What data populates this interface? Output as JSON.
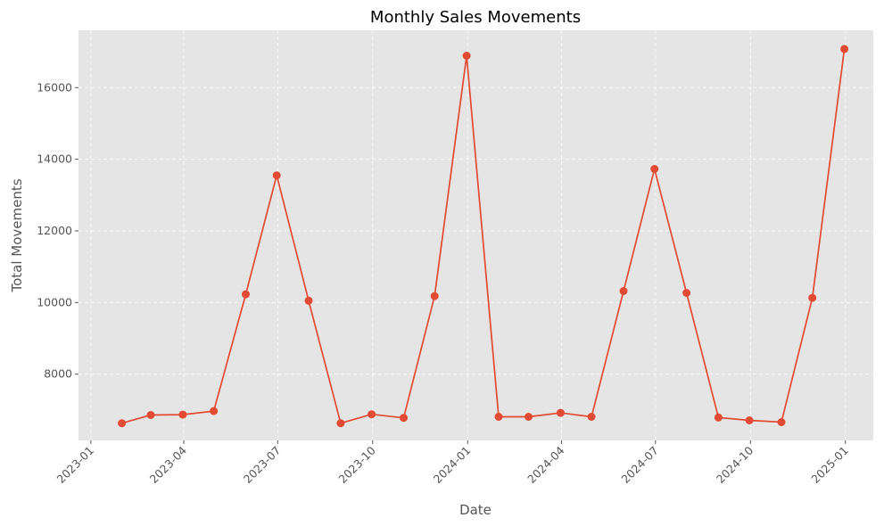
{
  "chart_data": {
    "type": "line",
    "title": "Monthly Sales Movements",
    "xlabel": "Date",
    "ylabel": "Total Movements",
    "grid": true,
    "colors": {
      "series": "#E24A33",
      "plot_bg": "#E5E5E5"
    },
    "xlim": [
      "2022-12-20",
      "2025-01-28"
    ],
    "ylim": [
      6150,
      17600
    ],
    "x_ticks": [
      "2023-01",
      "2023-04",
      "2023-07",
      "2023-10",
      "2024-01",
      "2024-04",
      "2024-07",
      "2024-10",
      "2025-01"
    ],
    "y_ticks": [
      8000,
      10000,
      12000,
      14000,
      16000
    ],
    "series": [
      {
        "x": [
          "2023-01-31",
          "2023-02-28",
          "2023-03-31",
          "2023-04-30",
          "2023-05-31",
          "2023-06-30",
          "2023-07-31",
          "2023-08-31",
          "2023-09-30",
          "2023-10-31",
          "2023-11-30",
          "2023-12-31",
          "2024-01-31",
          "2024-02-29",
          "2024-03-31",
          "2024-04-30",
          "2024-05-31",
          "2024-06-30",
          "2024-07-31",
          "2024-08-31",
          "2024-09-30",
          "2024-10-31",
          "2024-11-30",
          "2024-12-31"
        ],
        "values": [
          6630,
          6860,
          6870,
          6970,
          10230,
          13550,
          10050,
          6630,
          6880,
          6780,
          10180,
          16890,
          6810,
          6810,
          6920,
          6810,
          10320,
          13730,
          10270,
          6790,
          6710,
          6660,
          10130,
          17080
        ]
      }
    ]
  }
}
